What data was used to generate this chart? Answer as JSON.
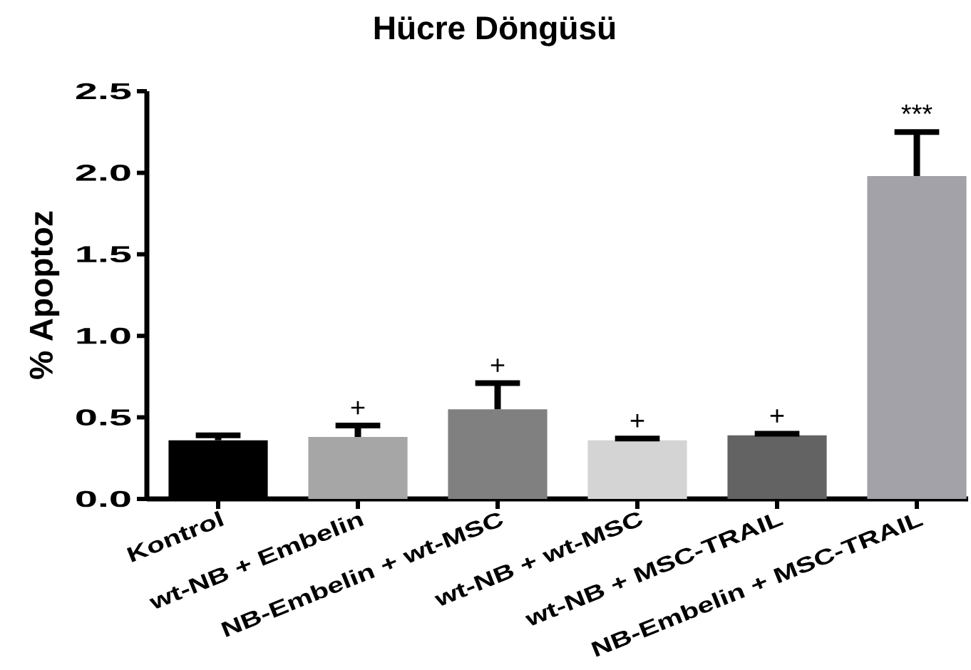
{
  "chart_data": {
    "type": "bar",
    "title": "Hücre Döngüsü",
    "ylabel": "% Apoptoz",
    "categories": [
      "Kontrol",
      "wt-NB + Embelin",
      "NB-Embelin + wt-MSC",
      "wt-NB + wt-MSC",
      "wt-NB + MSC-TRAIL",
      "NB-Embelin + MSC-TRAIL"
    ],
    "values": [
      0.36,
      0.38,
      0.55,
      0.36,
      0.39,
      1.98
    ],
    "colors": [
      "#000000",
      "#a6a6a6",
      "#808080",
      "#d4d4d4",
      "#636363",
      "#a2a2a8"
    ],
    "errors": [
      [
        0.36,
        0.39
      ],
      [
        0.38,
        0.45
      ],
      [
        0.55,
        0.71
      ],
      [
        0.36,
        0.37
      ],
      [
        0.39,
        0.4
      ],
      [
        1.98,
        2.25
      ]
    ],
    "ylim": [
      0,
      2.5
    ],
    "yticks": [
      {
        "value": 0,
        "label": "0.0"
      },
      0.5,
      {
        "value": 1,
        "label": "1.0"
      },
      1.5,
      {
        "value": 2,
        "label": "2.0"
      },
      2.5
    ],
    "annotations": [
      {
        "text": "+",
        "x": "wt-NB + Embelin",
        "y": 0.45
      },
      {
        "text": "+",
        "x": "NB-Embelin + wt-MSC",
        "y": 0.71
      },
      {
        "text": "+",
        "x": "wt-NB + wt-MSC",
        "y": 0.37
      },
      {
        "text": "+",
        "x": "wt-NB + MSC-TRAIL",
        "y": 0.4
      },
      {
        "text": "***",
        "x": "NB-Embelin + MSC-TRAIL",
        "y": 2.25
      }
    ]
  }
}
